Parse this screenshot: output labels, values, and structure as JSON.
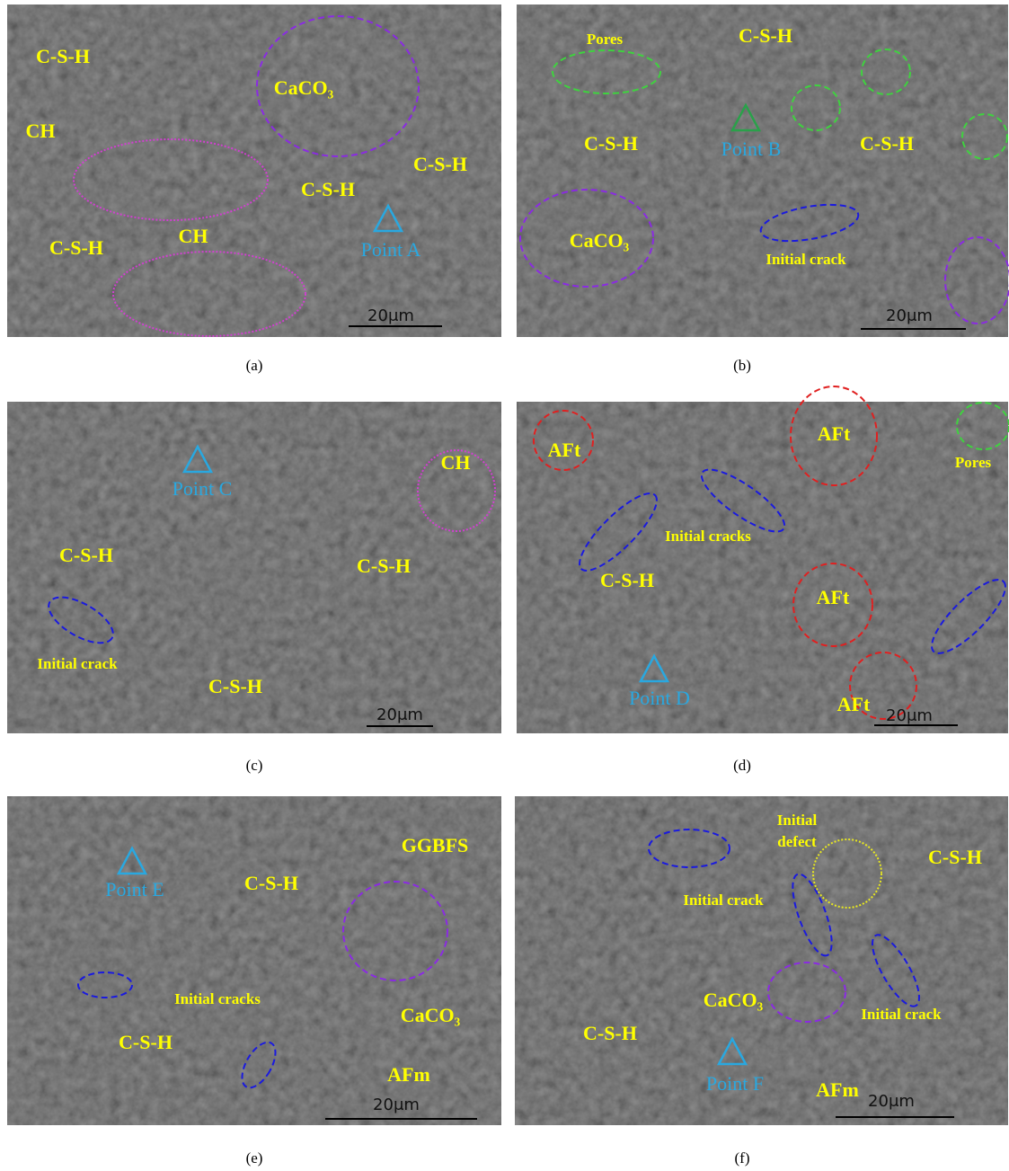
{
  "panels": [
    {
      "caption": "(a)",
      "labels": [
        "C-S-H",
        "CaCO₃",
        "CH",
        "C-S-H",
        "C-S-H",
        "C-S-H",
        "CH"
      ],
      "point": "Point A",
      "scale": "20μm"
    },
    {
      "caption": "(b)",
      "labels": [
        "Pores",
        "C-S-H",
        "C-S-H",
        "C-S-H",
        "CaCO₃",
        "Initial crack"
      ],
      "point": "Point B",
      "scale": "20μm"
    },
    {
      "caption": "(c)",
      "labels": [
        "CH",
        "C-S-H",
        "C-S-H",
        "Initial crack",
        "C-S-H"
      ],
      "point": "Point C",
      "scale": "20μm"
    },
    {
      "caption": "(d)",
      "labels": [
        "AFt",
        "AFt",
        "AFt",
        "AFt",
        "Pores",
        "Initial cracks",
        "C-S-H"
      ],
      "point": "Point D",
      "scale": "20μm"
    },
    {
      "caption": "(e)",
      "labels": [
        "GGBFS",
        "C-S-H",
        "Initial cracks",
        "CaCO₃",
        "C-S-H",
        "AFm"
      ],
      "point": "Point E",
      "scale": "20μm"
    },
    {
      "caption": "(f)",
      "labels": [
        "Initial",
        "defect",
        "C-S-H",
        "Initial crack",
        "CaCO₃",
        "Initial crack",
        "C-S-H",
        "AFm"
      ],
      "point": "Point F",
      "scale": "20μm"
    }
  ]
}
